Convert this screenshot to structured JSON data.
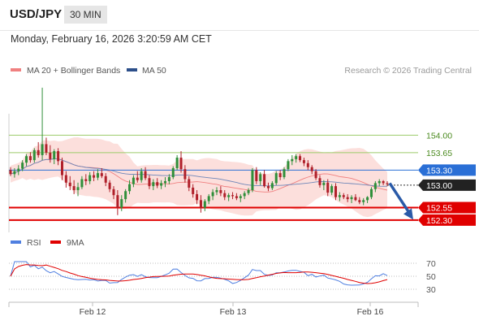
{
  "header": {
    "symbol": "USD/JPY",
    "timeframe": "30 MIN",
    "datetime": "Monday, February 16, 2026 3:20:59 AM CET"
  },
  "legend": {
    "ma20_label": "MA 20 + Bollinger Bands",
    "ma20_color": "#f08080",
    "ma50_label": "MA 50",
    "ma50_color": "#2c4f8a",
    "credit": "Research © 2026 Trading Central"
  },
  "rsi_legend": {
    "rsi_label": "RSI",
    "rsi_color": "#4f7fe0",
    "ma9_label": "9MA",
    "ma9_color": "#e00000"
  },
  "colors": {
    "bull": "#2f8f3a",
    "bear": "#b0202a",
    "band_fill": "#fcd9d6",
    "target_line": "#9ccc6a",
    "target_label": "#4a8a1e",
    "resistance": "#2a6fd6",
    "support": "#e00000",
    "arrow": "#2a5aa8"
  },
  "chart_data": [
    {
      "type": "candlestick",
      "pair": "USD/JPY",
      "timeframe": "30 MIN",
      "x_tick_labels": [
        "Feb 12",
        "Feb 13",
        "Feb 16"
      ],
      "y_range": [
        152.12,
        155.03
      ],
      "key_levels": [
        {
          "value": 154.0,
          "label": "154.00",
          "kind": "target"
        },
        {
          "value": 153.65,
          "label": "153.65",
          "kind": "target"
        },
        {
          "value": 153.3,
          "label": "153.30",
          "kind": "pivot"
        },
        {
          "value": 153.0,
          "label": "153.00",
          "kind": "current"
        },
        {
          "value": 152.55,
          "label": "152.55",
          "kind": "support"
        },
        {
          "value": 152.3,
          "label": "152.30",
          "kind": "support"
        }
      ],
      "forecast_arrow": {
        "from": 153.04,
        "to": 152.31
      },
      "candles_ohlc": [
        [
          153.3,
          153.36,
          153.18,
          153.22
        ],
        [
          153.22,
          153.34,
          153.15,
          153.28
        ],
        [
          153.28,
          153.4,
          153.2,
          153.33
        ],
        [
          153.33,
          153.5,
          153.28,
          153.45
        ],
        [
          153.45,
          153.62,
          153.38,
          153.58
        ],
        [
          153.58,
          153.66,
          153.45,
          153.5
        ],
        [
          153.5,
          153.74,
          153.45,
          153.7
        ],
        [
          153.7,
          153.86,
          153.55,
          153.6
        ],
        [
          153.6,
          154.95,
          153.5,
          153.82
        ],
        [
          153.82,
          153.95,
          153.6,
          153.65
        ],
        [
          153.65,
          153.8,
          153.45,
          153.52
        ],
        [
          153.52,
          153.72,
          153.42,
          153.68
        ],
        [
          153.68,
          153.74,
          153.4,
          153.48
        ],
        [
          153.48,
          153.55,
          153.1,
          153.2
        ],
        [
          153.2,
          153.28,
          152.95,
          153.05
        ],
        [
          153.05,
          153.18,
          152.9,
          152.98
        ],
        [
          152.98,
          153.1,
          152.82,
          152.9
        ],
        [
          152.9,
          153.05,
          152.78,
          152.96
        ],
        [
          152.96,
          153.18,
          152.92,
          153.12
        ],
        [
          153.12,
          153.22,
          153.0,
          153.08
        ],
        [
          153.08,
          153.26,
          153.02,
          153.2
        ],
        [
          153.2,
          153.28,
          153.08,
          153.15
        ],
        [
          153.15,
          153.32,
          153.1,
          153.24
        ],
        [
          153.24,
          153.34,
          153.14,
          153.18
        ],
        [
          153.18,
          153.24,
          152.98,
          153.05
        ],
        [
          153.05,
          153.1,
          152.86,
          152.92
        ],
        [
          152.92,
          152.98,
          152.72,
          152.8
        ],
        [
          152.8,
          152.9,
          152.4,
          152.55
        ],
        [
          152.55,
          152.8,
          152.48,
          152.72
        ],
        [
          152.72,
          152.92,
          152.65,
          152.88
        ],
        [
          152.88,
          153.1,
          152.82,
          153.02
        ],
        [
          153.02,
          153.2,
          152.96,
          153.15
        ],
        [
          153.15,
          153.28,
          153.05,
          153.1
        ],
        [
          153.1,
          153.34,
          153.05,
          153.28
        ],
        [
          153.28,
          153.36,
          153.1,
          153.14
        ],
        [
          153.14,
          153.2,
          152.92,
          152.98
        ],
        [
          152.98,
          153.12,
          152.9,
          153.06
        ],
        [
          153.06,
          153.14,
          152.94,
          152.99
        ],
        [
          152.99,
          153.1,
          152.92,
          153.04
        ],
        [
          153.04,
          153.16,
          152.96,
          153.08
        ],
        [
          153.08,
          153.22,
          153.02,
          153.16
        ],
        [
          153.16,
          153.38,
          153.12,
          153.34
        ],
        [
          153.34,
          153.6,
          153.3,
          153.55
        ],
        [
          153.55,
          153.68,
          153.25,
          153.32
        ],
        [
          153.32,
          153.4,
          153.05,
          153.12
        ],
        [
          153.12,
          153.18,
          152.88,
          152.95
        ],
        [
          152.95,
          153.02,
          152.75,
          152.82
        ],
        [
          152.82,
          152.9,
          152.62,
          152.7
        ],
        [
          152.7,
          152.8,
          152.45,
          152.55
        ],
        [
          152.55,
          152.72,
          152.48,
          152.68
        ],
        [
          152.68,
          152.82,
          152.62,
          152.78
        ],
        [
          152.78,
          152.92,
          152.7,
          152.86
        ],
        [
          152.86,
          152.96,
          152.8,
          152.9
        ],
        [
          152.9,
          152.98,
          152.78,
          152.84
        ],
        [
          152.84,
          152.9,
          152.7,
          152.76
        ],
        [
          152.76,
          152.84,
          152.68,
          152.8
        ],
        [
          152.8,
          152.86,
          152.72,
          152.78
        ],
        [
          152.78,
          152.84,
          152.7,
          152.74
        ],
        [
          152.74,
          152.82,
          152.66,
          152.78
        ],
        [
          152.78,
          152.88,
          152.72,
          152.84
        ],
        [
          152.84,
          152.94,
          152.8,
          152.9
        ],
        [
          152.9,
          153.34,
          152.86,
          153.3
        ],
        [
          153.3,
          153.36,
          153.02,
          153.08
        ],
        [
          153.08,
          153.26,
          153.0,
          153.22
        ],
        [
          153.22,
          153.3,
          152.95,
          152.98
        ],
        [
          152.98,
          153.05,
          152.88,
          152.94
        ],
        [
          152.94,
          153.08,
          152.9,
          153.04
        ],
        [
          153.04,
          153.28,
          153.0,
          153.24
        ],
        [
          153.24,
          153.3,
          153.1,
          153.16
        ],
        [
          153.16,
          153.36,
          153.12,
          153.32
        ],
        [
          153.32,
          153.52,
          153.28,
          153.48
        ],
        [
          153.48,
          153.6,
          153.4,
          153.52
        ],
        [
          153.52,
          153.62,
          153.45,
          153.58
        ],
        [
          153.58,
          153.62,
          153.46,
          153.5
        ],
        [
          153.5,
          153.55,
          153.38,
          153.44
        ],
        [
          153.44,
          153.5,
          153.3,
          153.36
        ],
        [
          153.36,
          153.4,
          153.22,
          153.28
        ],
        [
          153.28,
          153.32,
          153.1,
          153.14
        ],
        [
          153.14,
          153.2,
          152.95,
          153.0
        ],
        [
          153.0,
          153.1,
          152.9,
          153.05
        ],
        [
          153.05,
          153.12,
          152.78,
          152.85
        ],
        [
          152.85,
          153.02,
          152.8,
          152.98
        ],
        [
          152.98,
          153.04,
          152.7,
          152.76
        ],
        [
          152.76,
          152.86,
          152.68,
          152.8
        ],
        [
          152.8,
          152.84,
          152.72,
          152.76
        ],
        [
          152.76,
          152.82,
          152.66,
          152.72
        ],
        [
          152.72,
          152.8,
          152.64,
          152.76
        ],
        [
          152.76,
          152.82,
          152.68,
          152.7
        ],
        [
          152.7,
          152.76,
          152.62,
          152.66
        ],
        [
          152.66,
          152.74,
          152.6,
          152.7
        ],
        [
          152.7,
          152.78,
          152.64,
          152.76
        ],
        [
          152.76,
          152.96,
          152.72,
          152.92
        ],
        [
          152.92,
          153.08,
          152.86,
          153.04
        ],
        [
          153.04,
          153.12,
          152.98,
          153.08
        ],
        [
          153.08,
          153.1,
          153.0,
          153.04
        ],
        [
          153.04,
          153.08,
          152.98,
          153.02
        ]
      ]
    },
    {
      "type": "line",
      "name": "RSI",
      "y_ticks": [
        70,
        50,
        30
      ],
      "y_range": [
        15,
        85
      ]
    }
  ]
}
